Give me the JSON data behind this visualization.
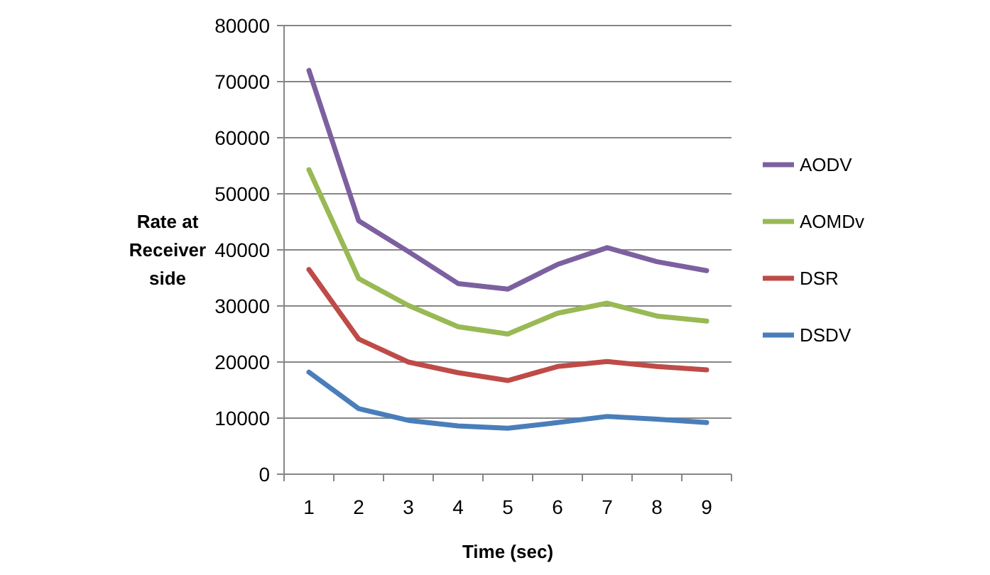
{
  "chart_data": {
    "type": "line",
    "xlabel": "Time (sec)",
    "ylabel": "Rate at Receiver side",
    "categories": [
      "1",
      "2",
      "3",
      "4",
      "5",
      "6",
      "7",
      "8",
      "9"
    ],
    "ylim": [
      0,
      80000
    ],
    "yticks": [
      0,
      10000,
      20000,
      30000,
      40000,
      50000,
      60000,
      70000,
      80000
    ],
    "grid": "y",
    "legend": "right",
    "marker": "none",
    "line_style": "solid",
    "series": [
      {
        "name": "AODV",
        "color": "#7d60a0",
        "values": [
          72000,
          45200,
          39700,
          34000,
          33000,
          37400,
          40400,
          37900,
          36300
        ]
      },
      {
        "name": "AOMDv",
        "color": "#98b954",
        "values": [
          54300,
          34900,
          30100,
          26300,
          25000,
          28700,
          30500,
          28200,
          27300
        ]
      },
      {
        "name": "DSR",
        "color": "#be4b48",
        "values": [
          36500,
          24100,
          20000,
          18100,
          16700,
          19200,
          20100,
          19200,
          18600
        ]
      },
      {
        "name": "DSDV",
        "color": "#4a7ebb",
        "values": [
          18200,
          11700,
          9600,
          8600,
          8200,
          9200,
          10300,
          9800,
          9200
        ]
      }
    ]
  }
}
